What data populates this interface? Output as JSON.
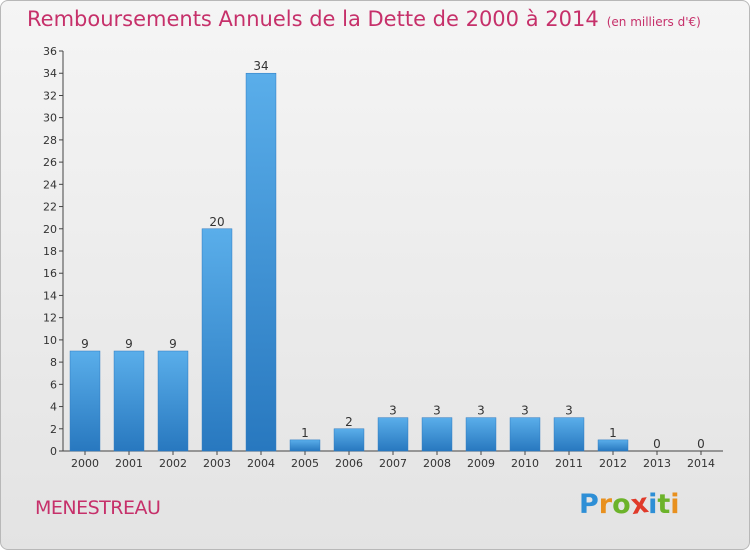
{
  "title": "Remboursements Annuels de la Dette de 2000 à 2014",
  "subtitle": "(en milliers d'€)",
  "town": "MENESTREAU",
  "logo": {
    "letters": [
      "P",
      "r",
      "o",
      "x",
      "i",
      "t",
      "i"
    ],
    "colors": [
      "#2e8fd6",
      "#e8901e",
      "#6cb32a",
      "#e03a2a",
      "#2e8fd6",
      "#6cb32a",
      "#e8901e"
    ]
  },
  "chart_data": {
    "type": "bar",
    "categories": [
      "2000",
      "2001",
      "2002",
      "2003",
      "2004",
      "2005",
      "2006",
      "2007",
      "2008",
      "2009",
      "2010",
      "2011",
      "2012",
      "2013",
      "2014"
    ],
    "values": [
      9,
      9,
      9,
      20,
      34,
      1,
      2,
      3,
      3,
      3,
      3,
      3,
      1,
      0,
      0
    ],
    "data_labels": [
      "9",
      "9",
      "9",
      "20",
      "34",
      "1",
      "2",
      "3",
      "3",
      "3",
      "3",
      "3",
      "1",
      "0",
      "0"
    ],
    "title": "Remboursements Annuels de la Dette de 2000 à 2014",
    "subtitle": "(en milliers d'€)",
    "xlabel": "",
    "ylabel": "",
    "ylim": [
      0,
      36
    ],
    "yticks": [
      0,
      2,
      4,
      6,
      8,
      10,
      12,
      14,
      16,
      18,
      20,
      22,
      24,
      26,
      28,
      30,
      32,
      34,
      36
    ],
    "grid": false,
    "legend": "none",
    "bar_color": "#3a93d8"
  }
}
